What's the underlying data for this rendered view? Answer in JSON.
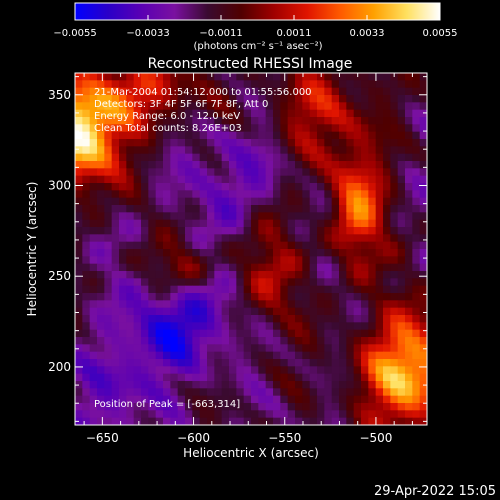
{
  "chart_data": {
    "type": "heatmap",
    "title": "Reconstructed RHESSI Image",
    "xlabel": "Heliocentric X (arcsec)",
    "ylabel": "Heliocentric Y (arcsec)",
    "xlim": [
      -665,
      -472
    ],
    "ylim": [
      168,
      362
    ],
    "xticks": [
      -650,
      -600,
      -550,
      -500
    ],
    "yticks": [
      200,
      250,
      300,
      350
    ],
    "colorbar": {
      "min": -0.0055,
      "max": 0.0055,
      "ticks": [
        "-0.0055",
        "-0.0033",
        "-0.0011",
        "0.0011",
        "0.0033",
        "0.0055"
      ],
      "label": "(photons cm⁻² s⁻¹ asec⁻²)",
      "colors": [
        "#0000ff",
        "#2a00c8",
        "#5a00b4",
        "#7a10a0",
        "#3a0a30",
        "#500000",
        "#a00000",
        "#e01400",
        "#ff5a00",
        "#ffa000",
        "#ffe060",
        "#ffffff"
      ]
    },
    "annotations": [
      "21-Mar-2004 01:54:12.000 to 01:55:56.000",
      "Detectors: 3F 4F 5F 6F 7F 8F, Att 0",
      "Energy Range: 6.0 - 12.0 keV",
      "Clean     Total counts: 8.26E+03"
    ],
    "peak_label": "Position of Peak = [-663,314]",
    "grid": false,
    "image_extent_desc": "intensity map; bright emission upper-left corner, lower-right corner and upper-right ridge; negative (blue) pockets lower-left"
  },
  "footer": {
    "timestamp": "29-Apr-2022 15:05"
  }
}
